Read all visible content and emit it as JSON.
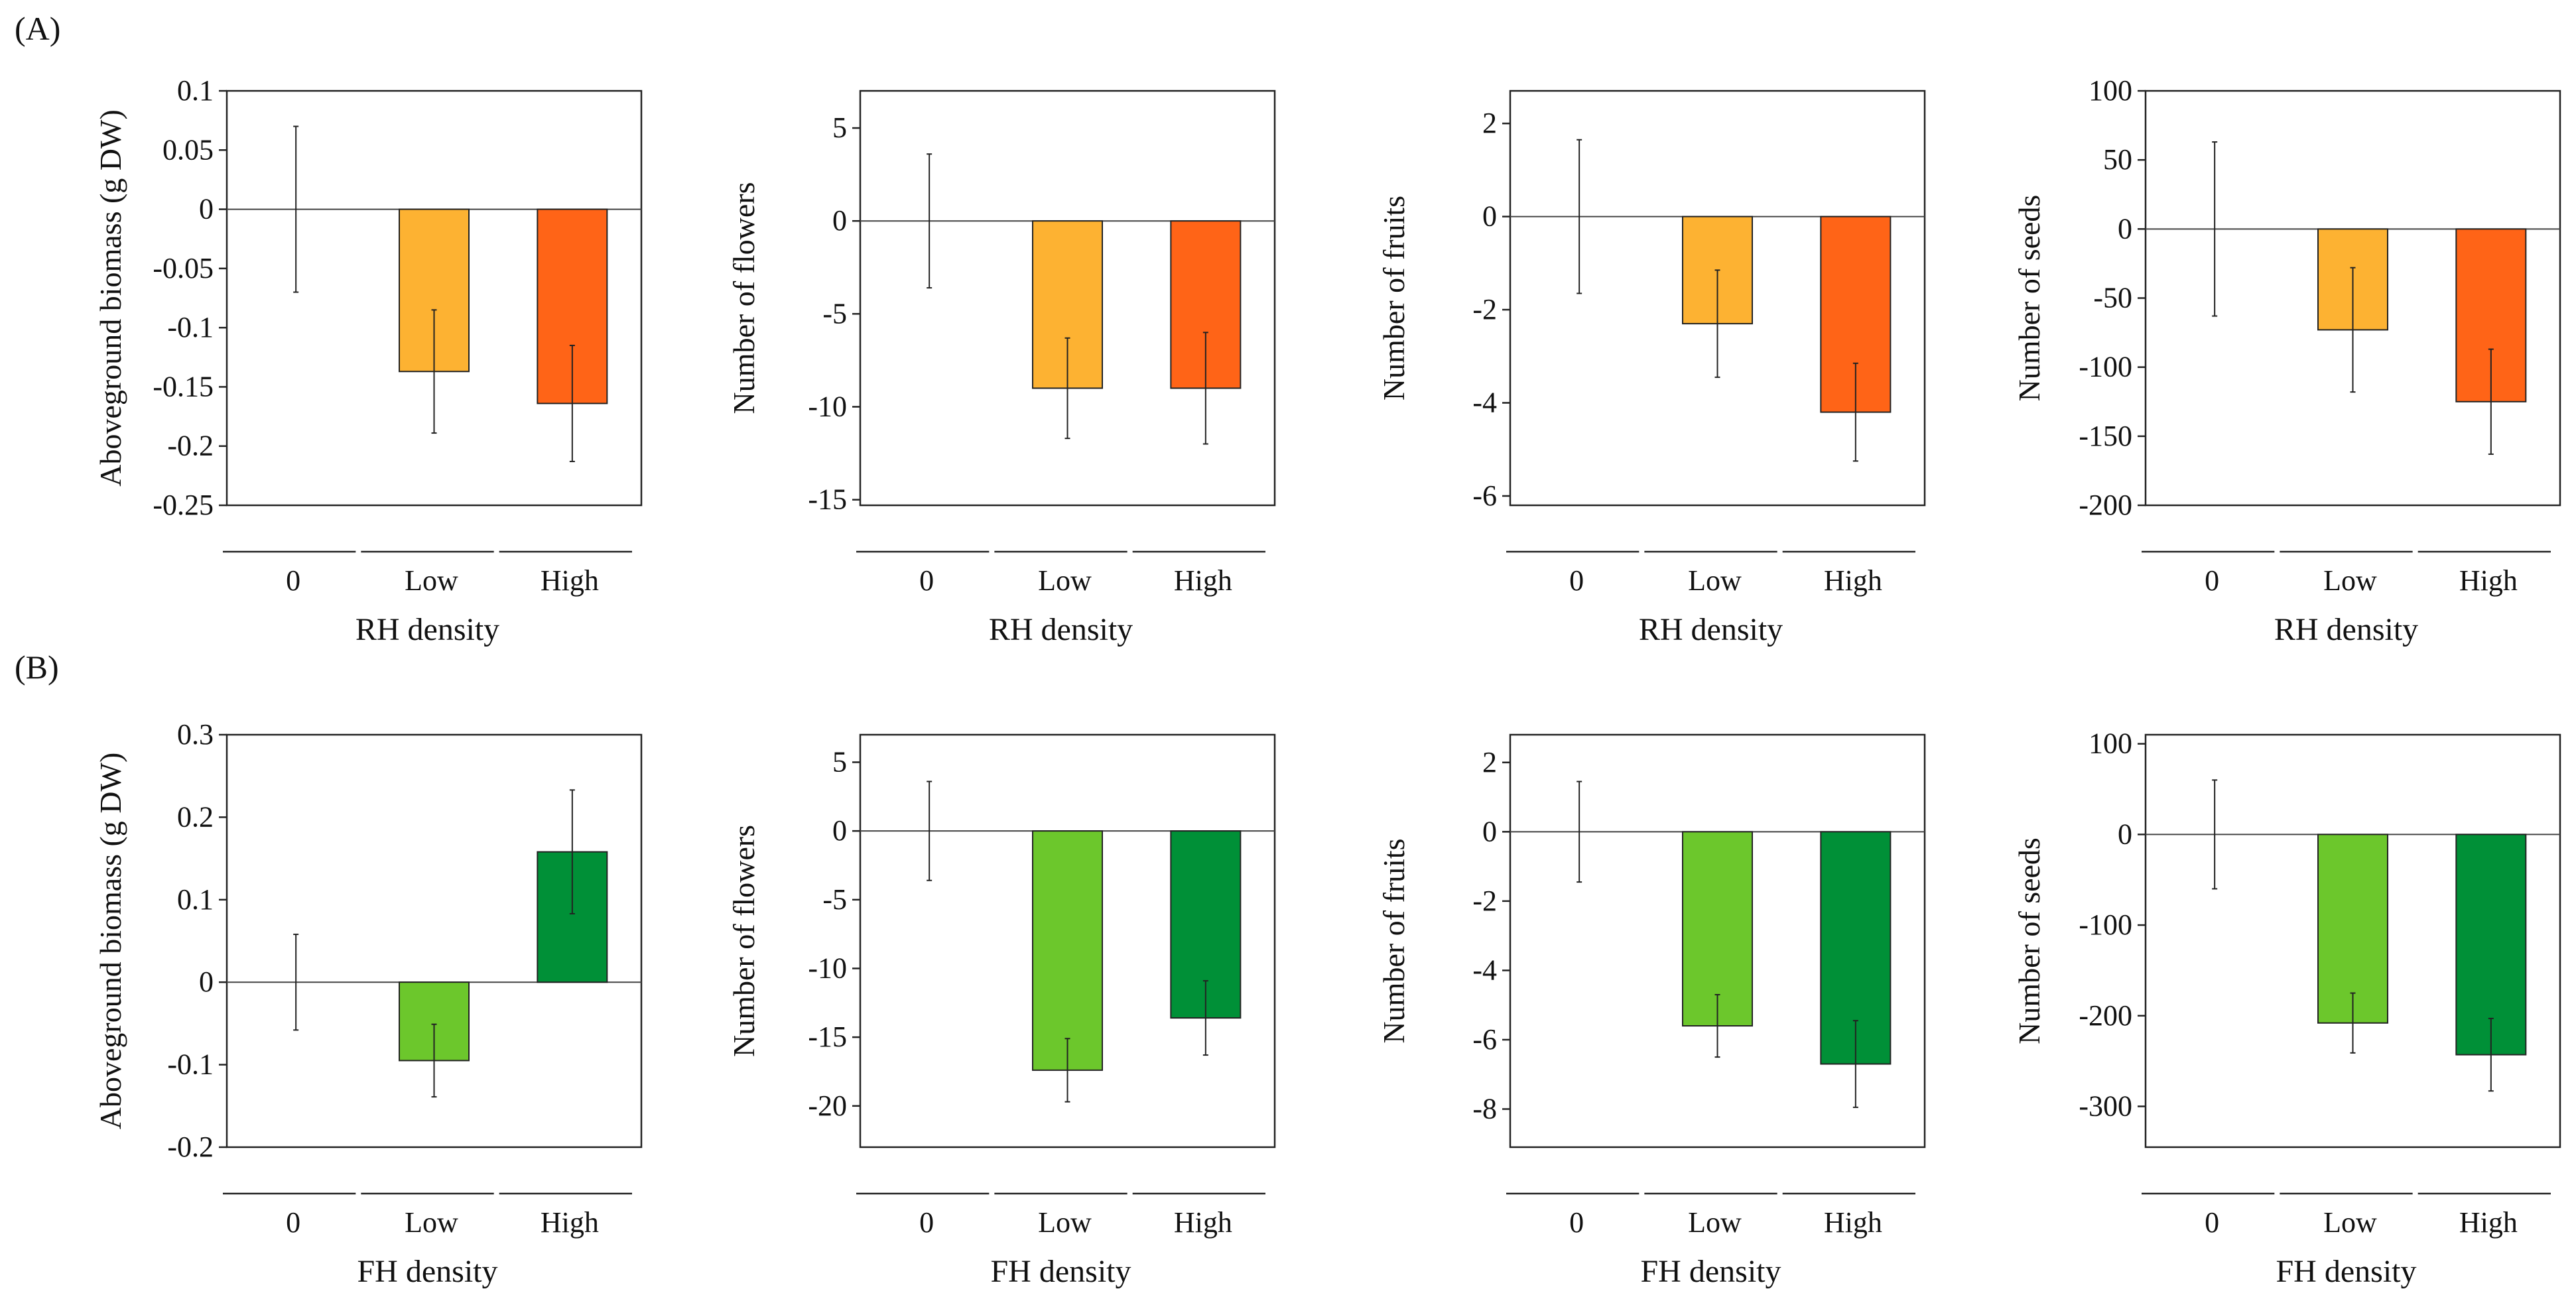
{
  "panel_labels": [
    "(A)",
    "(B)"
  ],
  "colors": {
    "rh_low": "#FDB232",
    "rh_high": "#FF6417",
    "fh_low": "#6CC72C",
    "fh_high": "#009037"
  },
  "chart_data": [
    {
      "type": "bar",
      "row": "A",
      "categories": [
        "0",
        "Low",
        "High"
      ],
      "values": [
        0,
        -0.137,
        -0.164
      ],
      "errors": [
        0.07,
        0.052,
        0.049
      ],
      "ylabel": "Aboveground biomass (g DW)",
      "xlabel": "RH density",
      "ylim": [
        -0.25,
        0.1
      ],
      "yticks": [
        0.1,
        0.05,
        0,
        -0.05,
        -0.1,
        -0.15,
        -0.2,
        -0.25
      ],
      "ytick_labels": [
        "0.1",
        "0.05",
        "0",
        "-0.05",
        "-0.1",
        "-0.15",
        "-0.2",
        "-0.25"
      ],
      "bar_colors": [
        "",
        "#FDB232",
        "#FF6417"
      ]
    },
    {
      "type": "bar",
      "row": "A",
      "categories": [
        "0",
        "Low",
        "High"
      ],
      "values": [
        0,
        -9.0,
        -9.0
      ],
      "errors": [
        3.6,
        2.7,
        3.0
      ],
      "ylabel": "Number of flowers",
      "xlabel": "RH density",
      "ylim": [
        -15.3,
        7.0
      ],
      "yticks": [
        5,
        0,
        -5,
        -10,
        -15
      ],
      "ytick_labels": [
        "5",
        "0",
        "-5",
        "-10",
        "-15"
      ],
      "bar_colors": [
        "",
        "#FDB232",
        "#FF6417"
      ]
    },
    {
      "type": "bar",
      "row": "A",
      "categories": [
        "0",
        "Low",
        "High"
      ],
      "values": [
        0,
        -2.3,
        -4.2
      ],
      "errors": [
        1.65,
        1.15,
        1.05
      ],
      "ylabel": "Number of fruits",
      "xlabel": "RH density",
      "ylim": [
        -6.2,
        2.7
      ],
      "yticks": [
        2,
        0,
        -2,
        -4,
        -6
      ],
      "ytick_labels": [
        "2",
        "0",
        "-2",
        "-4",
        "-6"
      ],
      "bar_colors": [
        "",
        "#FDB232",
        "#FF6417"
      ]
    },
    {
      "type": "bar",
      "row": "A",
      "categories": [
        "0",
        "Low",
        "High"
      ],
      "values": [
        0,
        -73,
        -125
      ],
      "errors": [
        63,
        45,
        38
      ],
      "ylabel": "Number of seeds",
      "xlabel": "RH density",
      "ylim": [
        -200,
        100
      ],
      "yticks": [
        100,
        50,
        0,
        -50,
        -100,
        -150,
        -200
      ],
      "ytick_labels": [
        "100",
        "50",
        "0",
        "-50",
        "-100",
        "-150",
        "-200"
      ],
      "bar_colors": [
        "",
        "#FDB232",
        "#FF6417"
      ]
    },
    {
      "type": "bar",
      "row": "B",
      "categories": [
        "0",
        "Low",
        "High"
      ],
      "values": [
        0,
        -0.095,
        0.158
      ],
      "errors": [
        0.058,
        0.044,
        0.075
      ],
      "ylabel": "Aboveground biomass (g DW)",
      "xlabel": "FH density",
      "ylim": [
        -0.2,
        0.3
      ],
      "yticks": [
        0.3,
        0.2,
        0.1,
        0,
        -0.1,
        -0.2
      ],
      "ytick_labels": [
        "0.3",
        "0.2",
        "0.1",
        "0",
        "-0.1",
        "-0.2"
      ],
      "bar_colors": [
        "",
        "#6CC72C",
        "#009037"
      ]
    },
    {
      "type": "bar",
      "row": "B",
      "categories": [
        "0",
        "Low",
        "High"
      ],
      "values": [
        0,
        -17.4,
        -13.6
      ],
      "errors": [
        3.6,
        2.3,
        2.7
      ],
      "ylabel": "Number of flowers",
      "xlabel": "FH density",
      "ylim": [
        -23,
        7
      ],
      "yticks": [
        5,
        0,
        -5,
        -10,
        -15,
        -20
      ],
      "ytick_labels": [
        "5",
        "0",
        "-5",
        "-10",
        "-15",
        "-20"
      ],
      "bar_colors": [
        "",
        "#6CC72C",
        "#009037"
      ]
    },
    {
      "type": "bar",
      "row": "B",
      "categories": [
        "0",
        "Low",
        "High"
      ],
      "values": [
        0,
        -5.6,
        -6.7
      ],
      "errors": [
        1.45,
        0.9,
        1.25
      ],
      "ylabel": "Number of fruits",
      "xlabel": "FH density",
      "ylim": [
        -9.1,
        2.8
      ],
      "yticks": [
        2,
        0,
        -2,
        -4,
        -6,
        -8
      ],
      "ytick_labels": [
        "2",
        "0",
        "-2",
        "-4",
        "-6",
        "-8"
      ],
      "bar_colors": [
        "",
        "#6CC72C",
        "#009037"
      ]
    },
    {
      "type": "bar",
      "row": "B",
      "categories": [
        "0",
        "Low",
        "High"
      ],
      "values": [
        0,
        -208,
        -243
      ],
      "errors": [
        60,
        33,
        40
      ],
      "ylabel": "Number of seeds",
      "xlabel": "FH density",
      "ylim": [
        -345,
        110
      ],
      "yticks": [
        100,
        0,
        -100,
        -200,
        -300
      ],
      "ytick_labels": [
        "100",
        "0",
        "-100",
        "-200",
        "-300"
      ],
      "bar_colors": [
        "",
        "#6CC72C",
        "#009037"
      ]
    }
  ]
}
